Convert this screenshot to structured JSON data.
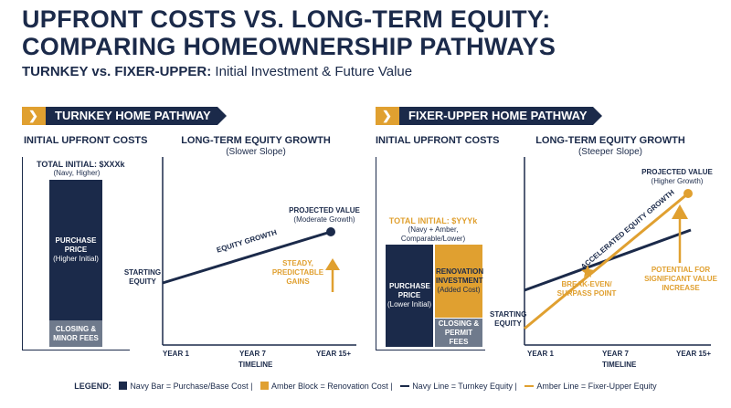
{
  "title_line1": "UPFRONT COSTS VS. LONG-TERM EQUITY:",
  "title_line2": "COMPARING HOMEOWNERSHIP PATHWAYS",
  "subtitle_bold": "TURNKEY vs. FIXER-UPPER:",
  "subtitle_rest": " Initial Investment & Future Value",
  "colors": {
    "navy": "#1b2a4a",
    "amber": "#e0a030",
    "gray": "#6f7a8c"
  },
  "turnkey": {
    "banner": "TURNKEY HOME PATHWAY",
    "costs_head": "INITIAL UPFRONT COSTS",
    "total": "TOTAL INITIAL: $XXXk",
    "total_note": "(Navy, Higher)",
    "purchase_label": "PURCHASE PRICE",
    "purchase_note": "(Higher Initial)",
    "fees_label": "CLOSING & MINOR FEES",
    "growth_head": "LONG-TERM EQUITY GROWTH",
    "growth_sub": "(Slower Slope)",
    "starting": "STARTING EQUITY",
    "line_label": "EQUITY GROWTH",
    "projected": "PROJECTED VALUE",
    "projected_note": "(Moderate Growth)",
    "steady": "STEADY, PREDICTABLE GAINS",
    "ticks": [
      "YEAR 1",
      "YEAR 7",
      "YEAR 15+"
    ],
    "timeline": "TIMELINE"
  },
  "fixer": {
    "banner": "FIXER-UPPER HOME PATHWAY",
    "costs_head": "INITIAL UPFRONT COSTS",
    "total": "TOTAL INITIAL: $YYYk",
    "total_note": "(Navy + Amber, Comparable/Lower)",
    "purchase_label": "PURCHASE PRICE",
    "purchase_note": "(Lower Initial)",
    "reno_label": "RENOVATION INVESTMENT",
    "reno_note": "(Added Cost)",
    "fees_label": "CLOSING & PERMIT FEES",
    "growth_head": "LONG-TERM EQUITY GROWTH",
    "growth_sub": "(Steeper Slope)",
    "starting": "STARTING EQUITY",
    "line_label": "ACCELERATED EQUITY GROWTH",
    "projected": "PROJECTED VALUE",
    "projected_note": "(Higher Growth)",
    "breakeven": "BREAK-EVEN/ SURPASS POINT",
    "potential": "POTENTIAL FOR SIGNIFICANT VALUE INCREASE",
    "ticks": [
      "YEAR 1",
      "YEAR 7",
      "YEAR 15+"
    ],
    "timeline": "TIMELINE"
  },
  "legend": {
    "label": "LEGEND:",
    "navy_bar": "Navy Bar = Purchase/Base Cost",
    "amber_block": "Amber Block = Renovation Cost",
    "navy_line": "Navy Line = Turnkey Equity",
    "amber_line": "Amber Line = Fixer-Upper Equity",
    "sep": "|"
  }
}
